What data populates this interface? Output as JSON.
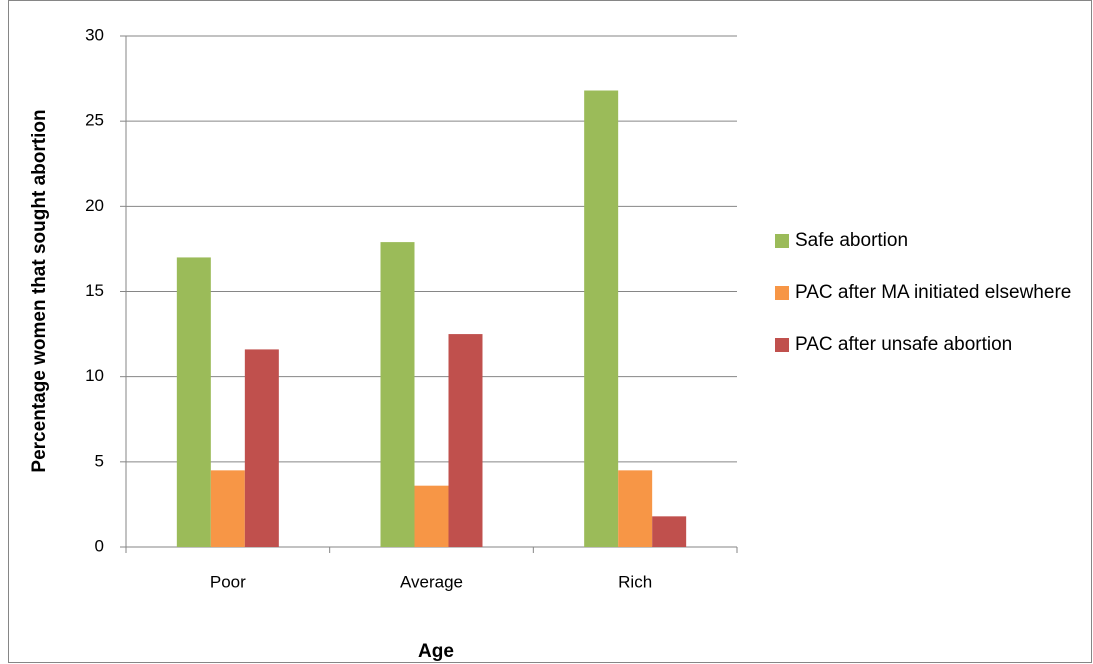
{
  "chart_data": {
    "type": "bar",
    "x_label": "Age",
    "y_label": "Percentage women that sought abortion",
    "categories": [
      "Poor",
      "Average",
      "Rich"
    ],
    "series": [
      {
        "name": "Safe abortion",
        "color": "#9bbb59",
        "values": [
          17,
          17.9,
          26.8
        ]
      },
      {
        "name": "PAC after MA initiated elsewhere",
        "color": "#f79646",
        "values": [
          4.5,
          3.6,
          4.5
        ]
      },
      {
        "name": "PAC after unsafe abortion",
        "color": "#c0504d",
        "values": [
          11.6,
          12.5,
          1.8
        ]
      }
    ],
    "ylim": [
      0,
      30
    ],
    "yticks": [
      0,
      5,
      10,
      15,
      20,
      25,
      30
    ],
    "grid": true,
    "legend": "right"
  }
}
